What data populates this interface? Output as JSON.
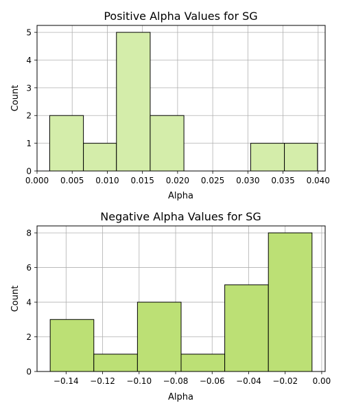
{
  "chart_data": [
    {
      "type": "bar",
      "title": "Positive Alpha Values for SG",
      "xlabel": "Alpha",
      "ylabel": "Count",
      "bin_edges": [
        0.0018,
        0.0066,
        0.0113,
        0.0161,
        0.0209,
        0.0256,
        0.0304,
        0.0352,
        0.0399
      ],
      "counts": [
        2,
        1,
        5,
        2,
        0,
        0,
        1,
        1
      ],
      "xlim": [
        0.0,
        0.041
      ],
      "ylim": [
        0,
        5.25
      ],
      "xticks": [
        "0.000",
        "0.005",
        "0.010",
        "0.015",
        "0.020",
        "0.025",
        "0.030",
        "0.035",
        "0.040"
      ],
      "xtick_values": [
        0.0,
        0.005,
        0.01,
        0.015,
        0.02,
        0.025,
        0.03,
        0.035,
        0.04
      ],
      "yticks": [
        "0",
        "1",
        "2",
        "3",
        "4",
        "5"
      ],
      "ytick_values": [
        0,
        1,
        2,
        3,
        4,
        5
      ],
      "grid": true,
      "bar_color": "#d4edaa",
      "edge_color": "#000000"
    },
    {
      "type": "bar",
      "title": "Negative Alpha Values for SG",
      "xlabel": "Alpha",
      "ylabel": "Count",
      "bin_edges": [
        -0.1487,
        -0.1248,
        -0.1009,
        -0.077,
        -0.0531,
        -0.0292,
        -0.0053
      ],
      "counts": [
        3,
        1,
        4,
        1,
        5,
        8
      ],
      "xlim": [
        -0.1559,
        0.0019
      ],
      "ylim": [
        0,
        8.4
      ],
      "xticks": [
        "−0.14",
        "−0.12",
        "−0.10",
        "−0.08",
        "−0.06",
        "−0.04",
        "−0.02",
        "0.00"
      ],
      "xtick_values": [
        -0.14,
        -0.12,
        -0.1,
        -0.08,
        -0.06,
        -0.04,
        -0.02,
        0.0
      ],
      "yticks": [
        "0",
        "2",
        "4",
        "6",
        "8"
      ],
      "ytick_values": [
        0,
        2,
        4,
        6,
        8
      ],
      "grid": true,
      "bar_color": "#bce075",
      "edge_color": "#000000"
    }
  ]
}
